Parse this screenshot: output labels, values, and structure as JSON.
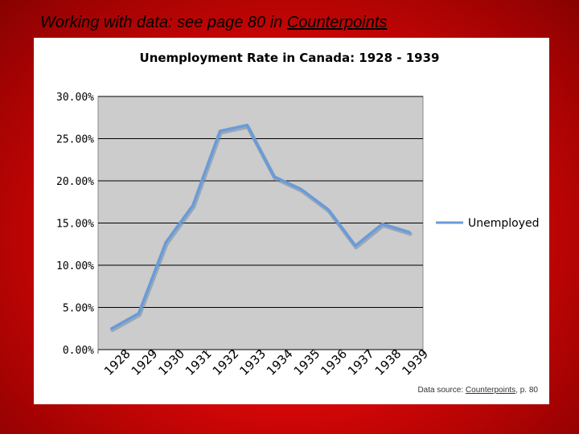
{
  "slide": {
    "title_prefix": "Working with data: see page 80 in ",
    "title_link": "Counterpoints"
  },
  "source": {
    "prefix": "Data source: ",
    "link": "Counterpoints",
    "suffix": ", p. 80"
  },
  "colors": {
    "background": "#d40606",
    "plot_area": "#cccccc",
    "series_line": "#6a9bd8"
  },
  "chart_data": {
    "type": "line",
    "title": "Unemployment Rate in Canada: 1928 - 1939",
    "xlabel": "",
    "ylabel": "",
    "categories": [
      "1928",
      "1929",
      "1930",
      "1931",
      "1932",
      "1933",
      "1934",
      "1935",
      "1936",
      "1937",
      "1938",
      "1939"
    ],
    "series": [
      {
        "name": "Unemployed",
        "values": [
          0.025,
          0.043,
          0.127,
          0.171,
          0.259,
          0.266,
          0.205,
          0.19,
          0.166,
          0.123,
          0.149,
          0.139
        ]
      }
    ],
    "ylim": [
      0,
      0.3
    ],
    "yticks": [
      {
        "value": 0.3,
        "label": "30.00%"
      },
      {
        "value": 0.25,
        "label": "25.00%"
      },
      {
        "value": 0.2,
        "label": "20.00%"
      },
      {
        "value": 0.15,
        "label": "15.00%"
      },
      {
        "value": 0.1,
        "label": "10.00%"
      },
      {
        "value": 0.05,
        "label": "5.00%"
      },
      {
        "value": 0.0,
        "label": "0.00%"
      }
    ],
    "grid": true,
    "legend": "right"
  }
}
